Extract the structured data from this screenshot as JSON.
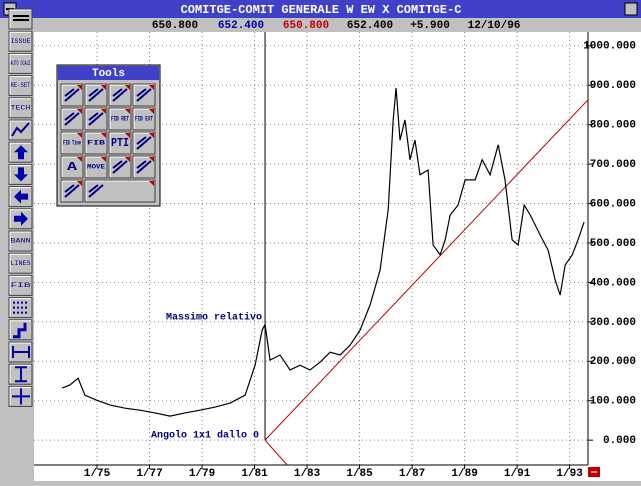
{
  "window": {
    "title": "COMITGE-COMIT GENERALE W EW X COMITGE-C",
    "quote": [
      {
        "text": "650.800",
        "color": "#000000"
      },
      {
        "text": "652.400",
        "color": "#0000a8"
      },
      {
        "text": "650.800",
        "color": "#c00000"
      },
      {
        "text": "652.400",
        "color": "#000000"
      },
      {
        "text": "+5.900",
        "color": "#000000"
      },
      {
        "text": "12/10/96",
        "color": "#000000"
      }
    ]
  },
  "toolbar": {
    "labels": [
      "ISSUE",
      "AUTO SCALE",
      "RE-SET",
      "TECH",
      "BANN",
      "LINES",
      "FIB"
    ]
  },
  "tools_palette": {
    "title": "Tools",
    "labels": [
      "FIB RET",
      "FIB EXT",
      "FIB Time",
      "FIB",
      "PTI",
      "A",
      "MOVE"
    ]
  },
  "chart_data": {
    "type": "line",
    "x": [
      1973.67,
      1973.97,
      1974.28,
      1974.54,
      1975.0,
      1975.5,
      1976.07,
      1976.64,
      1977.21,
      1977.78,
      1978.35,
      1978.92,
      1979.5,
      1980.07,
      1980.64,
      1981.02,
      1981.29,
      1981.4,
      1981.59,
      1981.97,
      1982.35,
      1982.73,
      1983.11,
      1983.5,
      1983.88,
      1984.26,
      1984.64,
      1985.02,
      1985.4,
      1985.78,
      1986.09,
      1986.28,
      1986.39,
      1986.54,
      1986.73,
      1986.92,
      1987.11,
      1987.3,
      1987.61,
      1987.8,
      1988.07,
      1988.26,
      1988.45,
      1988.75,
      1989.02,
      1989.4,
      1989.67,
      1989.97,
      1990.28,
      1990.54,
      1990.81,
      1991.04,
      1991.27,
      1991.5,
      1991.88,
      1992.18,
      1992.45,
      1992.64,
      1992.83,
      1993.1,
      1993.32,
      1993.55
    ],
    "series": [
      {
        "color": "#000000",
        "values": [
          132,
          140,
          157,
          114,
          101,
          89,
          81,
          76,
          69,
          61,
          69,
          76,
          84,
          94,
          114,
          190,
          279,
          293,
          203,
          216,
          178,
          190,
          178,
          198,
          223,
          216,
          241,
          279,
          343,
          431,
          584,
          812,
          893,
          761,
          812,
          711,
          761,
          673,
          685,
          495,
          470,
          508,
          571,
          596,
          660,
          660,
          711,
          673,
          749,
          660,
          508,
          495,
          596,
          571,
          520,
          482,
          406,
          368,
          444,
          470,
          508,
          553
        ]
      }
    ],
    "trend_lines": [
      {
        "color": "#c00000",
        "x": [
          1981.4,
          1993.7
        ],
        "values": [
          0,
          863
        ]
      },
      {
        "color": "#c00000",
        "x": [
          1981.4,
          1982.24
        ],
        "values": [
          0,
          -63
        ]
      }
    ],
    "cursor_x": 1981.4,
    "annotations": [
      "Massimo relativo",
      "Angolo 1x1 dallo 0"
    ],
    "xlim": [
      1972.6,
      1993.7
    ],
    "xticks": [
      {
        "value": 1975,
        "label": "1/75"
      },
      {
        "value": 1977,
        "label": "1/77"
      },
      {
        "value": 1979,
        "label": "1/79"
      },
      {
        "value": 1981,
        "label": "1/81"
      },
      {
        "value": 1983,
        "label": "1/83"
      },
      {
        "value": 1985,
        "label": "1/85"
      },
      {
        "value": 1987,
        "label": "1/87"
      },
      {
        "value": 1989,
        "label": "1/89"
      },
      {
        "value": 1991,
        "label": "1/91"
      },
      {
        "value": 1993,
        "label": "1/93"
      }
    ],
    "ylim": [
      -63,
      1035
    ],
    "yticks": [
      {
        "value": 0,
        "label": "0.000"
      },
      {
        "value": 100,
        "label": "100.000"
      },
      {
        "value": 200,
        "label": "200.000"
      },
      {
        "value": 300,
        "label": "300.000"
      },
      {
        "value": 400,
        "label": "400.000"
      },
      {
        "value": 500,
        "label": "500.000"
      },
      {
        "value": 600,
        "label": "600.000"
      },
      {
        "value": 700,
        "label": "700.000"
      },
      {
        "value": 800,
        "label": "800.000"
      },
      {
        "value": 900,
        "label": "900.000"
      },
      {
        "value": 1000,
        "label": "1000.000"
      }
    ],
    "grid": true
  }
}
